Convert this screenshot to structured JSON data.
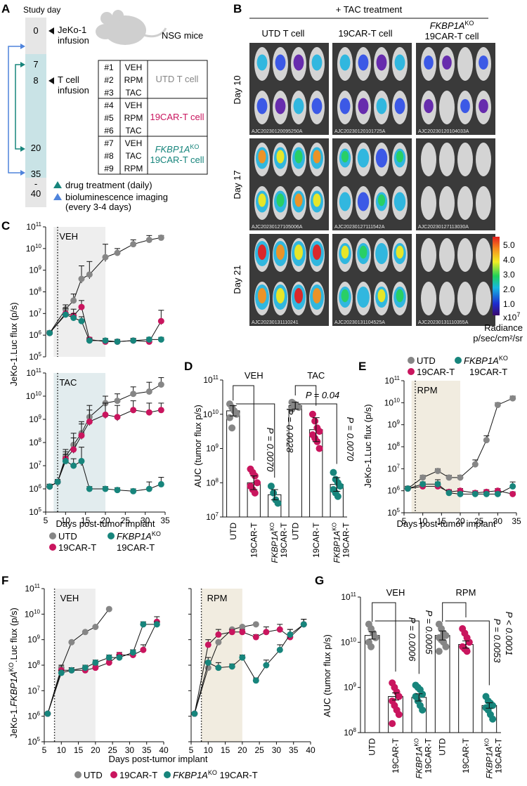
{
  "colors": {
    "utd": "#868686",
    "car": "#c9155e",
    "ko": "#17857c",
    "veh_shade": "#eeeeee",
    "tac_shade": "#e2ecee",
    "rpm_shade": "#f1ece0",
    "timeline": "#e6e6e6",
    "timeline_teal": "#c9e3e6",
    "arrow_teal": "#17857c",
    "arrow_blue": "#4f84dc"
  },
  "panels": {
    "a": "A",
    "b": "B",
    "c": "C",
    "d": "D",
    "e": "E",
    "f": "F",
    "g": "G"
  },
  "panel_a": {
    "study_day": "Study day",
    "days": [
      "0",
      "7",
      "8",
      "20",
      "35",
      "-",
      "40"
    ],
    "jeko_line1": "JeKo-1",
    "jeko_line2": "infusion",
    "tcell_line1": "T cell",
    "tcell_line2": "infusion",
    "nsg": "NSG mice",
    "groups": [
      {
        "id": "#1",
        "drug": "VEH"
      },
      {
        "id": "#2",
        "drug": "RPM"
      },
      {
        "id": "#3",
        "drug": "TAC"
      },
      {
        "id": "#4",
        "drug": "VEH"
      },
      {
        "id": "#5",
        "drug": "RPM"
      },
      {
        "id": "#6",
        "drug": "TAC"
      },
      {
        "id": "#7",
        "drug": "VEH"
      },
      {
        "id": "#8",
        "drug": "TAC"
      },
      {
        "id": "#9",
        "drug": "RPM"
      }
    ],
    "group_utd": "UTD T cell",
    "group_car": "19CAR-T cell",
    "group_ko_gene": "FKBP1A",
    "group_ko_sup": "KO",
    "group_ko_line2": "19CAR-T cell",
    "legend_drug": "drug treatment (daily)",
    "legend_bli1": "bioluminescence imaging",
    "legend_bli2": "(every 3-4 days)"
  },
  "panel_b": {
    "header": "+ TAC treatment",
    "col_utd": "UTD T cell",
    "col_car": "19CAR-T cell",
    "col_ko_gene": "FKBP1A",
    "col_ko_sup": "KO",
    "col_ko_line2": "19CAR-T cell",
    "rows": [
      "Day 10",
      "Day 17",
      "Day 21"
    ],
    "image_ids": [
      [
        "AJC20230120095250A",
        "AJC20230120101725A",
        "AJC20230120104033A"
      ],
      [
        "AJC20230127105006A",
        "AJC20230127111542A",
        "AJC20230127113030A"
      ],
      [
        "AJC20230131110241",
        "AJC20230131104525A",
        "AJC20230131110355A"
      ]
    ],
    "scale_ticks": [
      "5.0",
      "4.0",
      "3.0",
      "2.0",
      "1.0"
    ],
    "scale_exp_base": "x10",
    "scale_exp_sup": "7",
    "radiance_label": "Radiance",
    "radiance_unit": "p/sec/cm²/sr"
  },
  "panel_c": {
    "ylabel": "JeKo-1.Luc flux (p/s)",
    "xlabel": "Days post-tumor implant",
    "top_label": "VEH",
    "bottom_label": "TAC",
    "legend": {
      "utd": "UTD",
      "car": "19CAR-T",
      "ko_gene": "FKBP1A",
      "ko_sup": "KO",
      "ko_line2": "19CAR-T"
    }
  },
  "panel_d": {
    "ylabel": "AUC (tumor flux p/s)",
    "veh": "VEH",
    "tac": "TAC",
    "p1": "P = 0.0070",
    "p2": "P = 0.0028",
    "p3": "P = 0.04",
    "p4": "P = 0.0070"
  },
  "panel_e": {
    "ylabel": "JeKo-1.Luc flux (p/s)",
    "xlabel": "Days post-tumor implant",
    "label": "RPM",
    "legend": {
      "utd": "UTD",
      "car": "19CAR-T",
      "ko_gene": "FKBP1A",
      "ko_sup": "KO",
      "ko_line2": "19CAR-T"
    }
  },
  "panel_f": {
    "ylabel_pre": "JeKo-1.",
    "ylabel_gene": "FKBP1A",
    "ylabel_sup": "KO",
    "ylabel_post": ".Luc flux (p/s)",
    "xlabel": "Days post-tumor implant",
    "left": "VEH",
    "right": "RPM",
    "legend": {
      "utd": "UTD",
      "car": "19CAR-T",
      "ko_gene": "FKBP1A",
      "ko_sup": "KO",
      "ko_post": " 19CAR-T"
    }
  },
  "panel_g": {
    "ylabel": "AUC (tumor flux p/s)",
    "veh": "VEH",
    "rpm": "RPM",
    "p1": "P = 0.0006",
    "p2": "P = 0.0005",
    "p3": "P = 0.0053",
    "p4": "P < 0.0001"
  },
  "chart_data": [
    {
      "id": "C-VEH",
      "type": "line",
      "title": "VEH",
      "ylabel": "JeKo-1.Luc flux (p/s)",
      "xlabel": "Days post-tumor implant",
      "x_ticks": [
        5,
        10,
        15,
        20,
        25,
        30,
        35
      ],
      "y_tick_exponents": [
        5,
        6,
        7,
        8,
        9,
        10,
        11
      ],
      "xlim": [
        5,
        35
      ],
      "ylim_log10": [
        5,
        11
      ],
      "shade": [
        7,
        20
      ],
      "dotted_day": 8,
      "series": [
        {
          "name": "UTD",
          "x": [
            6,
            10,
            12,
            14,
            16,
            20,
            23,
            27,
            31,
            34
          ],
          "log10": [
            6.1,
            7.2,
            7.6,
            8.6,
            8.8,
            9.6,
            9.8,
            10.2,
            10.4,
            10.5
          ],
          "err": [
            0.1,
            0.2,
            0.3,
            0.6,
            0.6,
            0.6,
            0.2,
            0.2,
            0.2,
            0.1
          ]
        },
        {
          "name": "19CAR-T",
          "x": [
            6,
            10,
            12,
            14,
            16,
            20,
            23,
            27,
            31,
            34
          ],
          "log10": [
            6.1,
            7.0,
            6.9,
            7.3,
            5.8,
            5.7,
            5.7,
            5.75,
            5.7,
            6.65
          ],
          "err": [
            0.1,
            0.4,
            0.3,
            0.3,
            0.1,
            0.1,
            0.1,
            0.1,
            0.1,
            0.5
          ]
        },
        {
          "name": "FKBP1A KO 19CAR-T",
          "x": [
            6,
            10,
            12,
            14,
            16,
            20,
            23,
            27,
            31,
            34
          ],
          "log10": [
            6.1,
            6.95,
            6.8,
            6.65,
            5.75,
            5.75,
            5.7,
            5.75,
            5.8,
            5.8
          ],
          "err": [
            0.1,
            0.3,
            0.2,
            0.2,
            0.1,
            0.1,
            0.1,
            0.1,
            0.1,
            0.1
          ]
        }
      ]
    },
    {
      "id": "C-TAC",
      "type": "line",
      "title": "TAC",
      "ylabel": "JeKo-1.Luc flux (p/s)",
      "xlabel": "Days post-tumor implant",
      "x_ticks": [
        5,
        10,
        15,
        20,
        25,
        30,
        35
      ],
      "y_tick_exponents": [
        5,
        6,
        7,
        8,
        9,
        10,
        11
      ],
      "xlim": [
        5,
        35
      ],
      "ylim_log10": [
        5,
        11
      ],
      "shade": [
        7,
        20
      ],
      "dotted_day": 8,
      "series": [
        {
          "name": "UTD",
          "x": [
            6,
            8,
            10,
            12,
            14,
            16,
            20,
            23,
            27,
            31,
            34
          ],
          "log10": [
            6.1,
            6.3,
            7.4,
            7.9,
            8.4,
            9.1,
            9.7,
            9.8,
            10.1,
            10.2,
            10.5
          ],
          "err": [
            0.1,
            0.1,
            0.3,
            0.5,
            0.5,
            0.5,
            0.3,
            0.3,
            0.3,
            0.4,
            0.3
          ]
        },
        {
          "name": "19CAR-T",
          "x": [
            6,
            8,
            10,
            12,
            14,
            16,
            20,
            23,
            27,
            31,
            34
          ],
          "log10": [
            6.1,
            6.3,
            7.3,
            7.7,
            8.3,
            8.9,
            9.2,
            9.1,
            9.4,
            9.3,
            9.4
          ],
          "err": [
            0.1,
            0.1,
            0.3,
            0.5,
            0.5,
            0.5,
            0.5,
            0.5,
            0.4,
            0.4,
            0.3
          ]
        },
        {
          "name": "FKBP1A KO 19CAR-T",
          "x": [
            6,
            8,
            10,
            12,
            14,
            16,
            20,
            23,
            27,
            31,
            34
          ],
          "log10": [
            6.1,
            6.3,
            7.2,
            7.0,
            7.2,
            6.0,
            6.0,
            5.95,
            5.9,
            6.0,
            6.2
          ],
          "err": [
            0.1,
            0.1,
            0.3,
            0.3,
            0.6,
            0.1,
            0.1,
            0.1,
            0.1,
            0.3,
            0.3
          ]
        }
      ]
    },
    {
      "id": "D",
      "type": "bar",
      "ylabel": "AUC (tumor flux p/s)",
      "y_tick_exponents": [
        7,
        8,
        9,
        10,
        11
      ],
      "ylim_log10": [
        7,
        11
      ],
      "categories": [
        "UTD",
        "19CAR-T",
        "FKBP1A KO 19CAR-T",
        "UTD",
        "19CAR-T",
        "FKBP1A KO 19CAR-T"
      ],
      "groups": [
        "VEH",
        "VEH",
        "VEH",
        "TAC",
        "TAC",
        "TAC"
      ],
      "bar_log10": [
        10.1,
        8.0,
        7.65,
        10.25,
        9.55,
        7.95
      ],
      "err": [
        0.15,
        0.2,
        0.15,
        0.1,
        0.35,
        0.2
      ],
      "points_log10": [
        [
          10.3,
          10.2,
          10.1,
          10.0,
          9.9,
          9.6
        ],
        [
          8.4,
          8.3,
          8.2,
          8.0,
          7.9,
          7.8,
          7.7
        ],
        [
          7.9,
          7.7,
          7.5,
          7.4
        ],
        [
          10.35,
          10.3,
          10.25,
          10.2,
          10.15,
          10.3
        ],
        [
          10.0,
          9.8,
          9.6,
          9.5,
          9.4,
          9.3,
          9.2,
          9.0
        ],
        [
          8.3,
          8.1,
          8.0,
          7.9,
          7.8,
          7.7,
          7.6
        ]
      ],
      "comparisons": [
        [
          "VEH UTD vs 19CAR-T",
          "P = 0.0070"
        ],
        [
          "VEH UTD vs FKBP1A KO 19CAR-T",
          "P = 0.0028"
        ],
        [
          "TAC UTD vs 19CAR-T",
          "P = 0.04"
        ],
        [
          "TAC UTD vs FKBP1A KO 19CAR-T",
          "P = 0.0070"
        ]
      ]
    },
    {
      "id": "E",
      "type": "line",
      "title": "RPM",
      "ylabel": "JeKo-1.Luc flux (p/s)",
      "xlabel": "Days post-tumor implant",
      "x_ticks": [
        5,
        10,
        15,
        20,
        25,
        30,
        35
      ],
      "y_tick_exponents": [
        5,
        6,
        7,
        8,
        9,
        10,
        11
      ],
      "xlim": [
        5,
        35
      ],
      "ylim_log10": [
        5,
        11
      ],
      "shade": [
        7,
        20
      ],
      "dotted_day": 8,
      "series": [
        {
          "name": "UTD",
          "x": [
            6,
            10,
            14,
            17,
            20,
            24,
            27,
            30,
            34
          ],
          "log10": [
            6.1,
            6.6,
            6.9,
            6.6,
            6.6,
            7.2,
            8.3,
            9.9,
            10.2
          ],
          "err": [
            0.1,
            0.1,
            0.1,
            0.1,
            0.1,
            0.2,
            0.2,
            0.1,
            0.1
          ]
        },
        {
          "name": "19CAR-T",
          "x": [
            6,
            10,
            14,
            17,
            20,
            24,
            27,
            30,
            34
          ],
          "log10": [
            6.1,
            6.2,
            6.2,
            5.95,
            6.0,
            5.9,
            5.95,
            6.0,
            5.85
          ],
          "err": [
            0.1,
            0.1,
            0.2,
            0.1,
            0.1,
            0.1,
            0.1,
            0.1,
            0.1
          ]
        },
        {
          "name": "FKBP1A KO 19CAR-T",
          "x": [
            6,
            10,
            14,
            17,
            20,
            24,
            27,
            30,
            34
          ],
          "log10": [
            6.1,
            6.3,
            6.3,
            5.9,
            5.85,
            5.85,
            5.85,
            5.85,
            6.2
          ],
          "err": [
            0.1,
            0.1,
            0.2,
            0.1,
            0.1,
            0.1,
            0.1,
            0.1,
            0.2
          ]
        }
      ]
    },
    {
      "id": "F-VEH",
      "type": "line",
      "title": "VEH",
      "xlabel": "Days post-tumor implant",
      "ylabel": "JeKo-1.FKBP1A KO.Luc flux (p/s)",
      "x_ticks": [
        5,
        10,
        15,
        20,
        25,
        30,
        35,
        40
      ],
      "y_tick_exponents": [
        5,
        6,
        7,
        8,
        9,
        10,
        11
      ],
      "xlim": [
        5,
        40
      ],
      "ylim_log10": [
        5,
        11
      ],
      "shade": [
        8,
        20
      ],
      "dotted_day": 8,
      "series": [
        {
          "name": "UTD",
          "x": [
            6,
            10,
            13,
            17,
            20,
            24
          ],
          "log10": [
            6.1,
            7.9,
            8.9,
            9.3,
            9.5,
            10.2
          ],
          "err": [
            0,
            0,
            0,
            0,
            0,
            0
          ]
        },
        {
          "name": "19CAR-T",
          "x": [
            6,
            10,
            13,
            17,
            20,
            24,
            27,
            31,
            34,
            38
          ],
          "log10": [
            6.1,
            7.8,
            7.8,
            7.8,
            7.9,
            8.1,
            8.4,
            8.4,
            8.6,
            9.7
          ],
          "err": [
            0,
            0.2,
            0.1,
            0.1,
            0.1,
            0.1,
            0.1,
            0.2,
            0.2,
            0.2
          ]
        },
        {
          "name": "FKBP1A KO 19CAR-T",
          "x": [
            6,
            10,
            13,
            17,
            20,
            24,
            27,
            31,
            34,
            38
          ],
          "log10": [
            6.1,
            7.7,
            7.8,
            7.9,
            8.1,
            8.3,
            8.3,
            8.5,
            9.6,
            9.6
          ],
          "err": [
            0,
            0.1,
            0.1,
            0.1,
            0.1,
            0.1,
            0.1,
            0.1,
            0.1,
            0.1
          ]
        }
      ]
    },
    {
      "id": "F-RPM",
      "type": "line",
      "title": "RPM",
      "xlabel": "Days post-tumor implant",
      "x_ticks": [
        5,
        10,
        15,
        20,
        25,
        30,
        35,
        40
      ],
      "y_tick_exponents": [
        5,
        6,
        7,
        8,
        9,
        10,
        11
      ],
      "xlim": [
        5,
        40
      ],
      "ylim_log10": [
        5,
        11
      ],
      "shade": [
        8,
        20
      ],
      "dotted_day": 8,
      "series": [
        {
          "name": "UTD",
          "x": [
            6,
            10,
            13,
            17,
            20,
            24
          ],
          "log10": [
            6.1,
            7.9,
            8.9,
            9.4,
            9.5,
            9.6
          ],
          "err": [
            0,
            0,
            0,
            0,
            0,
            0
          ]
        },
        {
          "name": "19CAR-T",
          "x": [
            6,
            10,
            13,
            17,
            20,
            24,
            27,
            31,
            34,
            38
          ],
          "log10": [
            6.1,
            8.8,
            9.2,
            9.3,
            9.3,
            9.1,
            9.3,
            9.4,
            9.1,
            9.6
          ],
          "err": [
            0,
            0.2,
            0.2,
            0.1,
            0.1,
            0.1,
            0.2,
            0.2,
            0.3,
            0.2
          ]
        },
        {
          "name": "FKBP1A KO 19CAR-T",
          "x": [
            6,
            10,
            13,
            17,
            20,
            24,
            27,
            31,
            34,
            38
          ],
          "log10": [
            6.1,
            8.1,
            7.9,
            7.95,
            8.3,
            7.4,
            8.0,
            8.6,
            9.2,
            9.6
          ],
          "err": [
            0,
            0.2,
            0.2,
            0.1,
            0.1,
            0.1,
            0.2,
            0.2,
            0.2,
            0.2
          ]
        }
      ]
    },
    {
      "id": "G",
      "type": "bar",
      "ylabel": "AUC (tumor flux p/s)",
      "y_tick_exponents": [
        8,
        9,
        10,
        11
      ],
      "ylim_log10": [
        8,
        11
      ],
      "categories": [
        "UTD",
        "19CAR-T",
        "FKBP1A KO 19CAR-T",
        "UTD",
        "19CAR-T",
        "FKBP1A KO 19CAR-T"
      ],
      "groups": [
        "VEH",
        "VEH",
        "VEH",
        "RPM",
        "RPM",
        "RPM"
      ],
      "bar_log10": [
        10.15,
        8.8,
        8.78,
        10.15,
        9.95,
        8.6
      ],
      "err": [
        0.08,
        0.08,
        0.08,
        0.1,
        0.08,
        0.06
      ],
      "points_log10": [
        [
          10.4,
          10.3,
          10.2,
          10.1,
          10.0,
          9.9
        ],
        [
          9.1,
          9.0,
          8.9,
          8.8,
          8.7,
          8.6,
          8.5,
          8.4,
          8.2
        ],
        [
          9.05,
          9.0,
          8.95,
          8.85,
          8.8,
          8.7,
          8.6,
          8.5
        ],
        [
          10.4,
          10.3,
          10.2,
          10.15,
          10.1,
          10.05,
          10.0,
          9.9,
          9.8
        ],
        [
          10.3,
          10.2,
          10.1,
          10.0,
          9.9,
          9.85,
          9.8
        ],
        [
          8.8,
          8.7,
          8.65,
          8.6,
          8.55,
          8.5,
          8.4,
          8.3
        ]
      ],
      "comparisons": [
        [
          "VEH UTD vs 19CAR-T",
          "P = 0.0006"
        ],
        [
          "VEH UTD vs FKBP1A KO 19CAR-T",
          "P = 0.0005"
        ],
        [
          "RPM UTD vs 19CAR-T",
          "P = 0.0053"
        ],
        [
          "RPM UTD vs FKBP1A KO 19CAR-T",
          "P < 0.0001"
        ]
      ]
    }
  ]
}
